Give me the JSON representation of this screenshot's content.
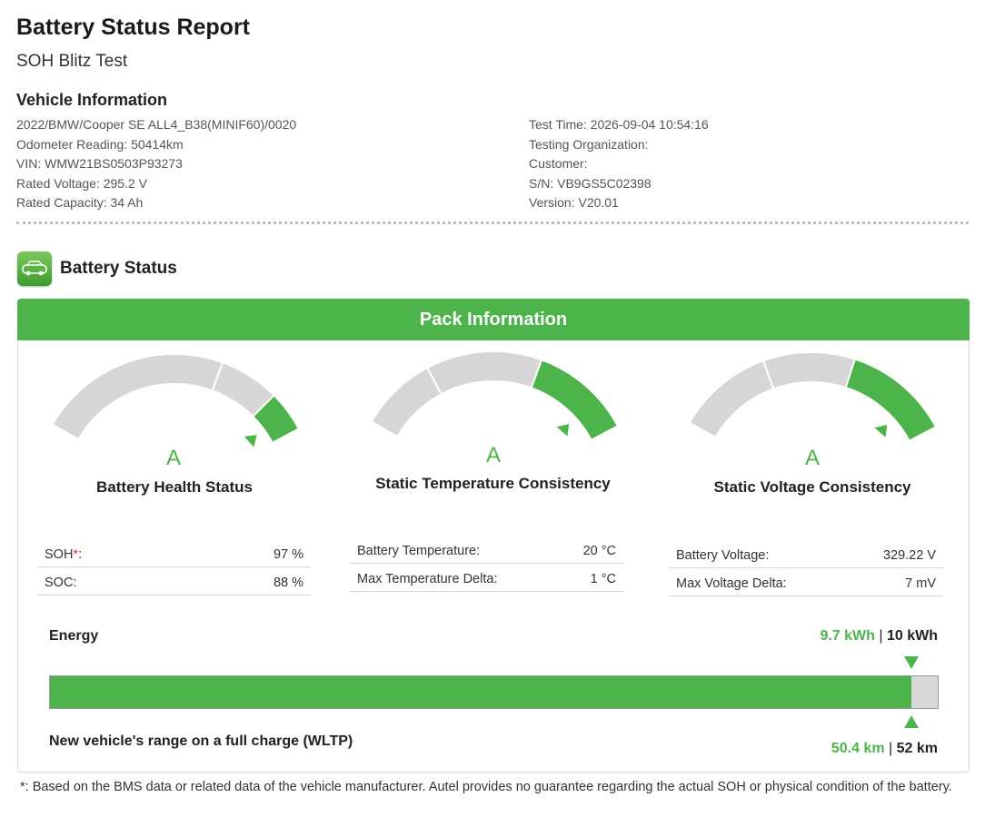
{
  "report": {
    "title": "Battery Status Report",
    "subtitle": "SOH Blitz Test"
  },
  "vehicle": {
    "heading": "Vehicle Information",
    "left": [
      "2022/BMW/Cooper SE ALL4_B38(MINIF60)/0020",
      "Odometer Reading: 50414km",
      "VIN: WMW21BS0503P93273",
      "Rated Voltage: 295.2 V",
      "Rated Capacity: 34 Ah"
    ],
    "right": [
      "Test Time: 2026-09-04 10:54:16",
      "Testing Organization:",
      "Customer:",
      "S/N: VB9GS5C02398",
      "Version: V20.01"
    ]
  },
  "battery_status": {
    "heading": "Battery Status",
    "icon": "battery-car-icon"
  },
  "pack": {
    "header": "Pack Information",
    "gauges": [
      {
        "label": "Battery Health Status",
        "grade": "A",
        "level": 0.95
      },
      {
        "label": "Static Temperature Consistency",
        "grade": "A",
        "level": 0.9
      },
      {
        "label": "Static Voltage Consistency",
        "grade": "A",
        "level": 0.9
      }
    ],
    "health_table": [
      {
        "key": "SOH",
        "star": "*",
        "suffix": ":",
        "value": "97 %"
      },
      {
        "key": "SOC:",
        "star": "",
        "suffix": "",
        "value": "88 %"
      }
    ],
    "temp_table": [
      {
        "key": "Battery Temperature:",
        "value": "20 °C"
      },
      {
        "key": "Max Temperature Delta:",
        "value": "1 °C"
      }
    ],
    "volt_table": [
      {
        "key": "Battery Voltage:",
        "value": "329.22 V"
      },
      {
        "key": "Max Voltage Delta:",
        "value": "7 mV"
      }
    ]
  },
  "energy": {
    "label": "Energy",
    "current": "9.7 kWh",
    "separator": "|",
    "total": "10 kWh",
    "fill_fraction": 0.97
  },
  "range": {
    "label": "New vehicle's range on a full charge (WLTP)",
    "current": "50.4 km",
    "separator": "|",
    "total": "52 km"
  },
  "footnote": "*: Based on the BMS data or related data of the vehicle manufacturer. Autel provides no guarantee regarding the actual SOH or physical condition of the battery.",
  "colors": {
    "accent": "#4cb44a",
    "gauge_gray": "#d6d6d6"
  }
}
